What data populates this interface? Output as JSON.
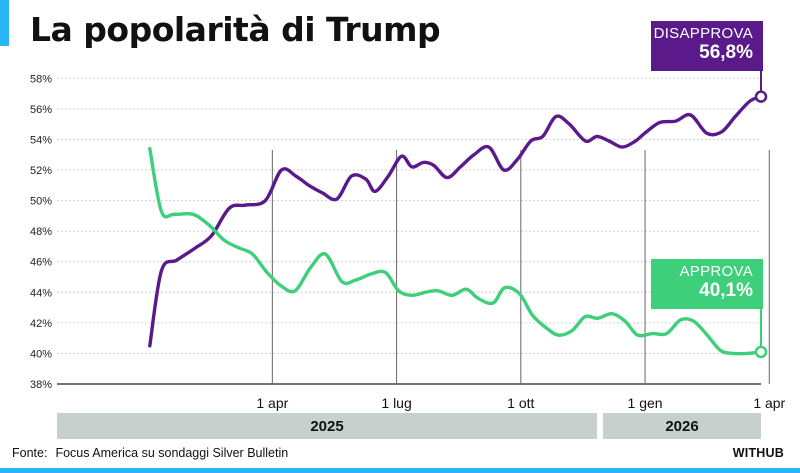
{
  "title": "La popolarità di Trump",
  "source_label": "Fonte:",
  "source_text": "Focus America su sondaggi Silver Bulletin",
  "brand": "WITHUB",
  "years": {
    "y2025": "2025",
    "y2026": "2026"
  },
  "callouts": {
    "disapprove_label": "DISAPPROVA",
    "disapprove_value": "56,8%",
    "approve_label": "APPROVA",
    "approve_value": "40,1%"
  },
  "chart_data": {
    "type": "line",
    "title": "La popolarità di Trump",
    "ylim": [
      38,
      59
    ],
    "xlim": [
      -2.2,
      14.8
    ],
    "y_ticks": [
      38,
      40,
      42,
      44,
      46,
      48,
      50,
      52,
      54,
      56,
      58
    ],
    "y_tick_labels": [
      "38%",
      "40%",
      "42%",
      "44%",
      "46%",
      "48%",
      "50%",
      "52%",
      "54%",
      "56%",
      "58%"
    ],
    "x_ticks": [
      {
        "x": 3,
        "label": "1 apr"
      },
      {
        "x": 6,
        "label": "1 lug"
      },
      {
        "x": 9,
        "label": "1 ott"
      },
      {
        "x": 12,
        "label": "1 gen"
      },
      {
        "x": 15,
        "label": "1 apr"
      }
    ],
    "x_unit": "months since Jan 2025 (approx)",
    "series": [
      {
        "name": "Disapprova",
        "color": "#5a1a8a",
        "x": [
          0.04,
          0.32,
          0.69,
          1.14,
          1.53,
          1.96,
          2.35,
          2.83,
          3.22,
          3.57,
          3.88,
          4.21,
          4.56,
          4.91,
          5.26,
          5.48,
          5.8,
          6.12,
          6.37,
          6.65,
          6.9,
          7.22,
          7.54,
          7.87,
          8.23,
          8.59,
          8.92,
          9.24,
          9.53,
          9.85,
          10.17,
          10.56,
          10.84,
          11.13,
          11.45,
          11.77,
          11.99,
          12.35,
          12.74,
          13.1,
          13.49,
          13.85,
          14.18,
          14.53,
          14.8
        ],
        "values": [
          40.5,
          45.4,
          46.1,
          46.9,
          47.7,
          49.5,
          49.7,
          50.0,
          52.0,
          51.6,
          51.0,
          50.5,
          50.1,
          51.6,
          51.4,
          50.6,
          51.6,
          52.9,
          52.2,
          52.5,
          52.3,
          51.5,
          52.2,
          53.0,
          53.5,
          52.0,
          52.7,
          53.9,
          54.2,
          55.5,
          55.0,
          53.9,
          54.2,
          53.9,
          53.5,
          53.9,
          54.4,
          55.1,
          55.2,
          55.6,
          54.4,
          54.5,
          55.5,
          56.5,
          56.8
        ]
      },
      {
        "name": "Approva",
        "color": "#3ecf7a",
        "x": [
          0.04,
          0.32,
          0.63,
          1.08,
          1.47,
          1.84,
          2.2,
          2.52,
          2.87,
          3.22,
          3.55,
          3.92,
          4.28,
          4.68,
          5.01,
          5.39,
          5.73,
          6.05,
          6.37,
          6.69,
          7.0,
          7.34,
          7.68,
          7.97,
          8.33,
          8.61,
          8.97,
          9.28,
          9.6,
          9.91,
          10.24,
          10.55,
          10.86,
          11.2,
          11.52,
          11.82,
          12.18,
          12.52,
          12.86,
          13.18,
          13.5,
          13.82,
          14.12,
          14.46,
          14.8
        ],
        "values": [
          53.4,
          49.3,
          49.1,
          49.1,
          48.4,
          47.4,
          46.9,
          46.5,
          45.3,
          44.4,
          44.1,
          45.6,
          46.5,
          44.7,
          44.8,
          45.2,
          45.3,
          44.1,
          43.8,
          44.0,
          44.1,
          43.8,
          44.2,
          43.6,
          43.3,
          44.3,
          43.9,
          42.5,
          41.7,
          41.2,
          41.5,
          42.4,
          42.3,
          42.6,
          42.1,
          41.2,
          41.3,
          41.3,
          42.2,
          42.1,
          41.2,
          40.2,
          40.0,
          40.0,
          40.1
        ]
      }
    ],
    "annotations": [
      {
        "series": "Disapprova",
        "label": "DISAPPROVA",
        "value": "56,8%"
      },
      {
        "series": "Approva",
        "label": "APPROVA",
        "value": "40,1%"
      }
    ]
  }
}
